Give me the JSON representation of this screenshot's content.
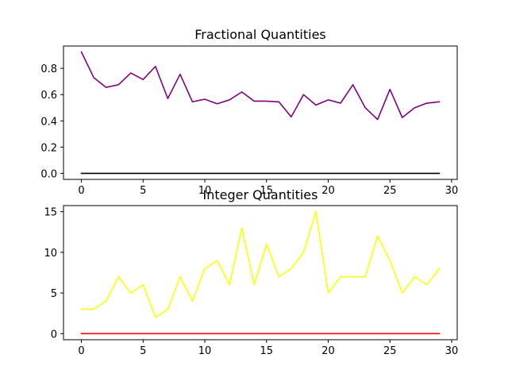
{
  "chart_data": [
    {
      "type": "line",
      "title": "Fractional Quantities",
      "xlabel": "",
      "ylabel": "",
      "xlim": [
        -1.45,
        30.45
      ],
      "ylim": [
        -0.046,
        0.97
      ],
      "xticks": [
        0,
        5,
        10,
        15,
        20,
        25,
        30
      ],
      "yticks": [
        0.0,
        0.2,
        0.4,
        0.6,
        0.8
      ],
      "ytick_labels": [
        "0.0",
        "0.2",
        "0.4",
        "0.6",
        "0.8"
      ],
      "grid": false,
      "series": [
        {
          "color": "#800080",
          "x": [
            0,
            1,
            2,
            3,
            4,
            5,
            6,
            7,
            8,
            9,
            10,
            11,
            12,
            13,
            14,
            15,
            16,
            17,
            18,
            19,
            20,
            21,
            22,
            23,
            24,
            25,
            26,
            27,
            28,
            29
          ],
          "values": [
            0.925,
            0.73,
            0.655,
            0.675,
            0.765,
            0.715,
            0.815,
            0.57,
            0.755,
            0.545,
            0.565,
            0.53,
            0.56,
            0.62,
            0.55,
            0.55,
            0.545,
            0.43,
            0.6,
            0.52,
            0.56,
            0.535,
            0.675,
            0.5,
            0.41,
            0.64,
            0.425,
            0.5,
            0.535,
            0.545
          ]
        },
        {
          "color": "#000000",
          "x": [
            0,
            1,
            2,
            3,
            4,
            5,
            6,
            7,
            8,
            9,
            10,
            11,
            12,
            13,
            14,
            15,
            16,
            17,
            18,
            19,
            20,
            21,
            22,
            23,
            24,
            25,
            26,
            27,
            28,
            29
          ],
          "values": [
            0,
            0,
            0,
            0,
            0,
            0,
            0,
            0,
            0,
            0,
            0,
            0,
            0,
            0,
            0,
            0,
            0,
            0,
            0,
            0,
            0,
            0,
            0,
            0,
            0,
            0,
            0,
            0,
            0,
            0
          ]
        }
      ]
    },
    {
      "type": "line",
      "title": "Integer Quantities",
      "xlabel": "",
      "ylabel": "",
      "xlim": [
        -1.45,
        30.45
      ],
      "ylim": [
        -0.75,
        15.75
      ],
      "xticks": [
        0,
        5,
        10,
        15,
        20,
        25,
        30
      ],
      "yticks": [
        0,
        5,
        10,
        15
      ],
      "ytick_labels": [
        "0",
        "5",
        "10",
        "15"
      ],
      "grid": false,
      "series": [
        {
          "color": "#ffff00",
          "x": [
            0,
            1,
            2,
            3,
            4,
            5,
            6,
            7,
            8,
            9,
            10,
            11,
            12,
            13,
            14,
            15,
            16,
            17,
            18,
            19,
            20,
            21,
            22,
            23,
            24,
            25,
            26,
            27,
            28,
            29
          ],
          "values": [
            3,
            3,
            4,
            7,
            5,
            6,
            2,
            3,
            7,
            4,
            8,
            9,
            6,
            13,
            6,
            11,
            7,
            8,
            10,
            15,
            5,
            7,
            7,
            7,
            12,
            9,
            5,
            7,
            6,
            8
          ]
        },
        {
          "color": "#ff0000",
          "x": [
            0,
            1,
            2,
            3,
            4,
            5,
            6,
            7,
            8,
            9,
            10,
            11,
            12,
            13,
            14,
            15,
            16,
            17,
            18,
            19,
            20,
            21,
            22,
            23,
            24,
            25,
            26,
            27,
            28,
            29
          ],
          "values": [
            0,
            0,
            0,
            0,
            0,
            0,
            0,
            0,
            0,
            0,
            0,
            0,
            0,
            0,
            0,
            0,
            0,
            0,
            0,
            0,
            0,
            0,
            0,
            0,
            0,
            0,
            0,
            0,
            0,
            0
          ]
        }
      ]
    }
  ]
}
